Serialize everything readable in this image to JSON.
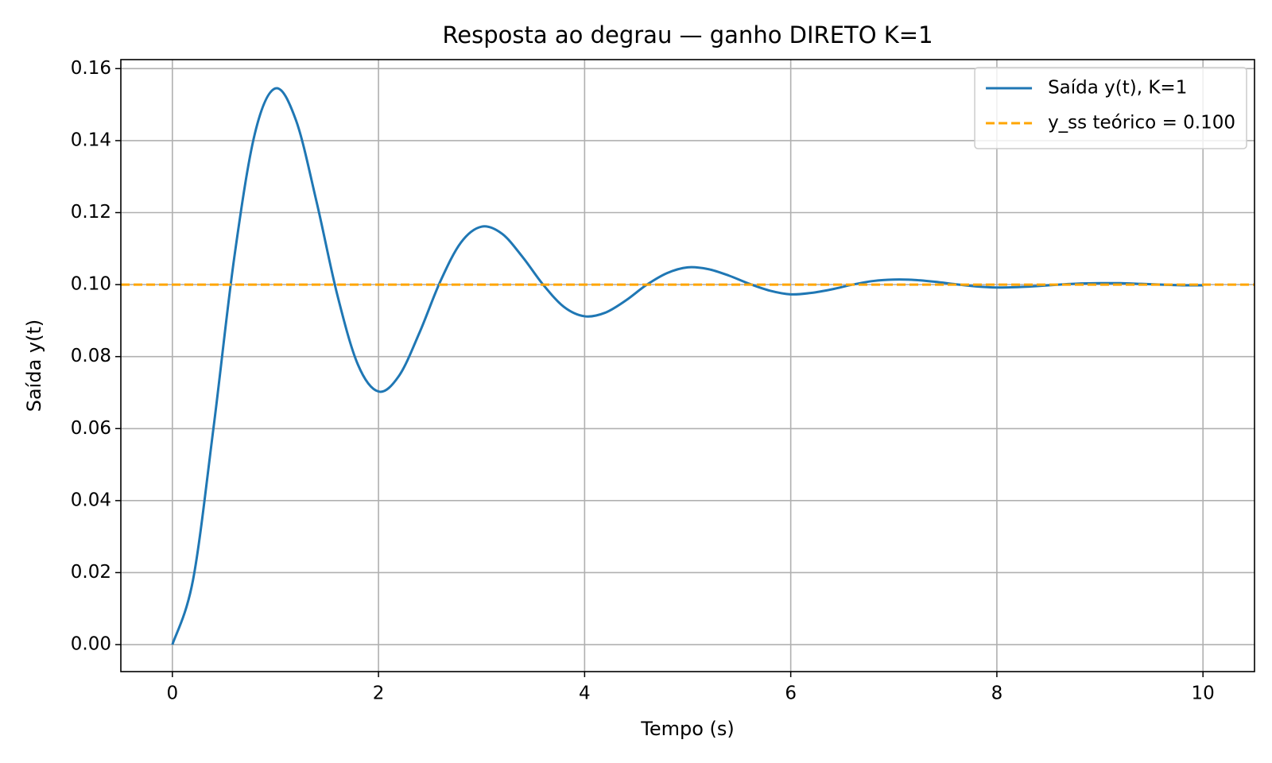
{
  "chart_data": {
    "type": "line",
    "title": "Resposta ao degrau — ganho DIRETO K=1",
    "x_label": "Tempo (s)",
    "y_label": "Saída y(t)",
    "x": [
      0,
      0.2,
      0.4,
      0.6,
      0.8,
      1.0,
      1.2,
      1.4,
      1.6,
      1.8,
      2.0,
      2.2,
      2.4,
      2.6,
      2.8,
      3.0,
      3.2,
      3.4,
      3.6,
      3.8,
      4.0,
      4.2,
      4.4,
      4.6,
      4.8,
      5.0,
      5.2,
      5.4,
      5.6,
      5.8,
      6.0,
      6.2,
      6.4,
      6.6,
      6.8,
      7.0,
      7.2,
      7.4,
      7.6,
      7.8,
      8.0,
      8.2,
      8.4,
      8.6,
      8.8,
      9.0,
      9.2,
      9.4,
      9.6,
      9.8,
      10.0
    ],
    "series": [
      {
        "name": "Saída y(t), K=1",
        "color": "#1f77b4",
        "values": [
          0,
          0.0179,
          0.0604,
          0.1074,
          0.1419,
          0.1545,
          0.1456,
          0.1229,
          0.0972,
          0.0778,
          0.0703,
          0.0747,
          0.0868,
          0.1009,
          0.1117,
          0.1161,
          0.1141,
          0.1076,
          0.0999,
          0.0938,
          0.0912,
          0.0922,
          0.0956,
          0.0999,
          0.1032,
          0.1048,
          0.1043,
          0.1025,
          0.1002,
          0.0983,
          0.0973,
          0.0977,
          0.0987,
          0.1,
          0.101,
          0.1014,
          0.1013,
          0.1008,
          0.1001,
          0.0995,
          0.0992,
          0.0993,
          0.0996,
          0.1,
          0.1003,
          0.1004,
          0.1004,
          0.1002,
          0.1,
          0.0998,
          0.0998
        ]
      }
    ],
    "reference_lines": [
      {
        "name": "y_ss teórico = 0.100",
        "color": "#ffa500",
        "value": 0.1,
        "style": "dashed"
      }
    ],
    "xlim": [
      -0.5,
      10.5
    ],
    "ylim": [
      -0.0075,
      0.1625
    ],
    "xticks": [
      0,
      2,
      4,
      6,
      8,
      10
    ],
    "yticks": [
      {
        "value": 0,
        "label": "0.00"
      },
      0.02,
      0.04,
      0.06,
      0.08,
      {
        "value": 0.1,
        "label": "0.10"
      },
      0.12,
      0.14,
      0.16
    ],
    "grid": true,
    "legend": "upper right"
  }
}
